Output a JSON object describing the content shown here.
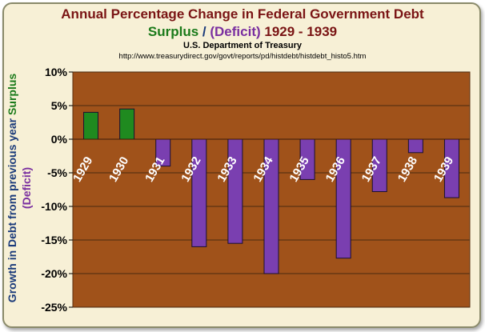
{
  "title_line1": "Annual Percentage Change in Federal Government Debt",
  "title_line2": {
    "surplus": "Surplus",
    "separator": " / ",
    "deficit": "(Deficit)",
    "years": " 1929 - 1939"
  },
  "source": "U.S. Department of Treasury",
  "url": "http://www.treasurydirect.gov/govt/reports/pd/histdebt/histdebt_histo5.htm",
  "colors": {
    "plot_background": "#a0521a",
    "surplus_bar": "#1f8a1f",
    "deficit_bar": "#7a3fb0",
    "grid": "#4a2a10",
    "tick_text": "#000000",
    "category_label": "#ffffff"
  },
  "chart_data": {
    "type": "bar",
    "title": "Annual Percentage Change in Federal Government Debt",
    "ylabel": {
      "main": "Growth in Debt from previous year",
      "surplus": "Surplus",
      "deficit": "(Deficit)"
    },
    "xlabel": "",
    "categories": [
      "1929",
      "1930",
      "1931",
      "1932",
      "1933",
      "1934",
      "1935",
      "1936",
      "1937",
      "1938",
      "1939"
    ],
    "values": [
      4,
      4.5,
      -4,
      -16,
      -15.5,
      -20,
      -6,
      -17.7,
      -7.8,
      -2,
      -8.7
    ],
    "ylim": [
      -25,
      10
    ],
    "yticks": [
      10,
      5,
      0,
      -5,
      -10,
      -15,
      -20,
      -25
    ],
    "ytick_labels": [
      "10%",
      "5%",
      "0%",
      "-5%",
      "-10%",
      "-15%",
      "-20%",
      "-25%"
    ],
    "grid": true,
    "legend": "none"
  }
}
